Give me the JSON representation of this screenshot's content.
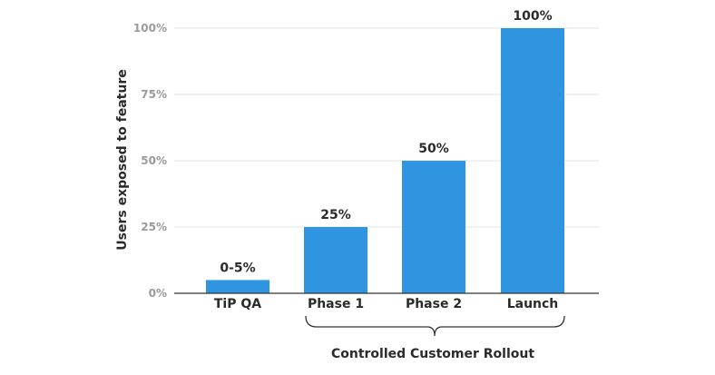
{
  "chart_data": {
    "type": "bar",
    "categories": [
      "TiP QA",
      "Phase 1",
      "Phase 2",
      "Launch"
    ],
    "values": [
      5,
      25,
      50,
      100
    ],
    "data_labels": [
      "0-5%",
      "25%",
      "50%",
      "100%"
    ],
    "ylabel": "Users exposed to feature",
    "yticks": [
      "0%",
      "25%",
      "50%",
      "75%",
      "100%"
    ],
    "ylim": [
      0,
      100
    ],
    "grid": true,
    "bar_color": "#2f95e0",
    "group_label": "Controlled Customer Rollout",
    "group_categories": [
      "Phase 1",
      "Phase 2",
      "Launch"
    ]
  }
}
